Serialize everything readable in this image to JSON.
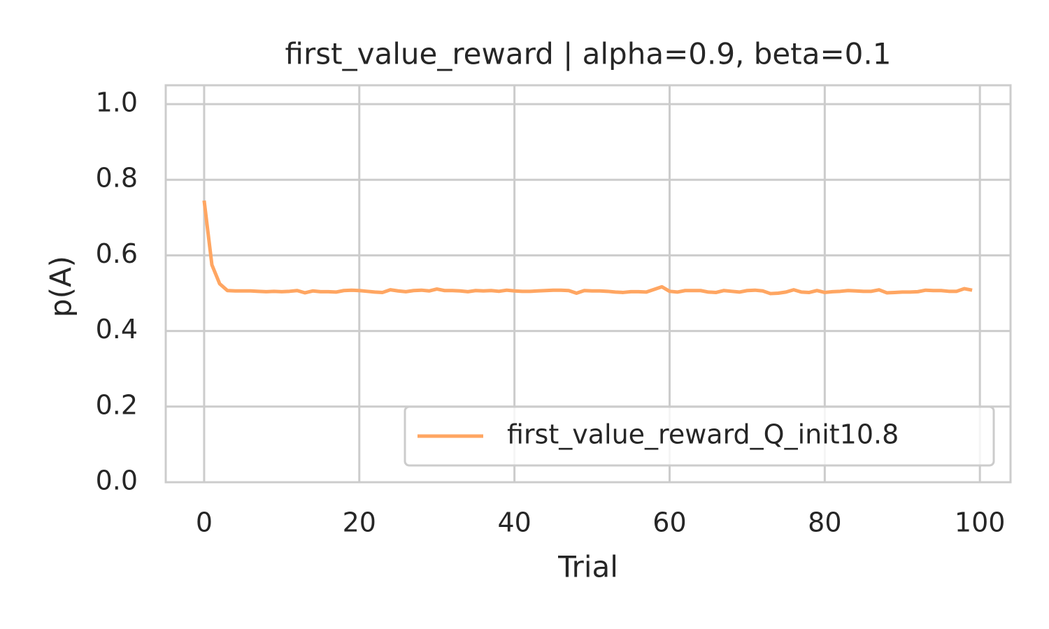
{
  "chart_data": {
    "type": "line",
    "title": "first_value_reward | alpha=0.9, beta=0.1",
    "x_label": "Trial",
    "y_label": "p(A)",
    "x": [
      0,
      1,
      2,
      3,
      4,
      5,
      6,
      7,
      8,
      9,
      10,
      11,
      12,
      13,
      14,
      15,
      16,
      17,
      18,
      19,
      20,
      21,
      22,
      23,
      24,
      25,
      26,
      27,
      28,
      29,
      30,
      31,
      32,
      33,
      34,
      35,
      36,
      37,
      38,
      39,
      40,
      41,
      42,
      43,
      44,
      45,
      46,
      47,
      48,
      49,
      50,
      51,
      52,
      53,
      54,
      55,
      56,
      57,
      58,
      59,
      60,
      61,
      62,
      63,
      64,
      65,
      66,
      67,
      68,
      69,
      70,
      71,
      72,
      73,
      74,
      75,
      76,
      77,
      78,
      79,
      80,
      81,
      82,
      83,
      84,
      85,
      86,
      87,
      88,
      89,
      90,
      91,
      92,
      93,
      94,
      95,
      96,
      97,
      98,
      99
    ],
    "series": [
      {
        "name": "first_value_reward_Q_init10.8",
        "color": "#ffa662",
        "values": [
          0.745,
          0.575,
          0.525,
          0.507,
          0.506,
          0.506,
          0.506,
          0.505,
          0.504,
          0.505,
          0.504,
          0.505,
          0.507,
          0.501,
          0.506,
          0.504,
          0.504,
          0.503,
          0.507,
          0.508,
          0.507,
          0.505,
          0.503,
          0.502,
          0.509,
          0.506,
          0.504,
          0.507,
          0.508,
          0.506,
          0.511,
          0.507,
          0.507,
          0.506,
          0.504,
          0.507,
          0.506,
          0.507,
          0.505,
          0.508,
          0.506,
          0.505,
          0.505,
          0.506,
          0.507,
          0.508,
          0.508,
          0.507,
          0.5,
          0.507,
          0.506,
          0.506,
          0.505,
          0.503,
          0.502,
          0.504,
          0.504,
          0.503,
          0.51,
          0.517,
          0.505,
          0.503,
          0.507,
          0.507,
          0.507,
          0.503,
          0.502,
          0.507,
          0.505,
          0.503,
          0.507,
          0.508,
          0.506,
          0.499,
          0.5,
          0.503,
          0.509,
          0.503,
          0.502,
          0.507,
          0.502,
          0.504,
          0.505,
          0.507,
          0.506,
          0.505,
          0.505,
          0.509,
          0.501,
          0.502,
          0.503,
          0.503,
          0.504,
          0.508,
          0.507,
          0.507,
          0.505,
          0.505,
          0.512,
          0.508
        ]
      }
    ],
    "xlim": [
      -4.95,
      103.95
    ],
    "ylim": [
      0,
      1.05
    ],
    "xticks": [
      0,
      20,
      40,
      60,
      80,
      100
    ],
    "yticks": [
      {
        "value": 0,
        "label": "0.0"
      },
      0.2,
      0.4,
      0.6,
      0.8,
      {
        "value": 1,
        "label": "1.0"
      }
    ],
    "grid": true,
    "legend": "lower right"
  }
}
